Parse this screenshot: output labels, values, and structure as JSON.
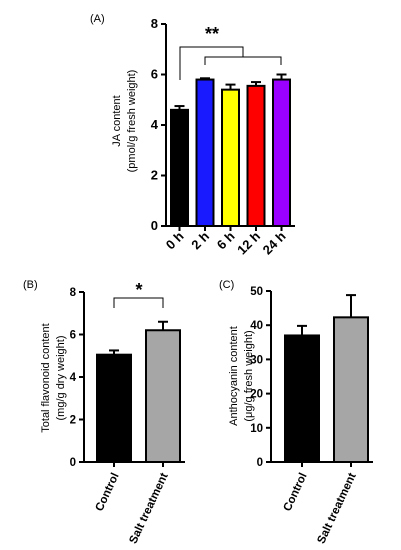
{
  "chart_data": [
    {
      "panel": "(A)",
      "type": "bar",
      "ylabel": [
        "JA content",
        "(pmol/g fresh weight)"
      ],
      "categories": [
        "0 h",
        "2 h",
        "6 h",
        "12 h",
        "24 h"
      ],
      "values": [
        4.6,
        5.8,
        5.4,
        5.55,
        5.8
      ],
      "errors": [
        0.15,
        0.05,
        0.2,
        0.15,
        0.2
      ],
      "colors": [
        "#000000",
        "#1a1aff",
        "#ffff00",
        "#ff0000",
        "#9900ff"
      ],
      "ylim": [
        0,
        8
      ],
      "yticks": [
        0,
        2,
        4,
        6,
        8
      ],
      "annotation": "**"
    },
    {
      "panel": "(B)",
      "type": "bar",
      "ylabel": [
        "Total flavonoid content",
        "(mg/g dry weight)"
      ],
      "categories": [
        "Control",
        "Salt treatment"
      ],
      "values": [
        5.05,
        6.2
      ],
      "errors": [
        0.2,
        0.4
      ],
      "colors": [
        "#000000",
        "#a6a6a6"
      ],
      "ylim": [
        0,
        8
      ],
      "yticks": [
        0,
        2,
        4,
        6,
        8
      ],
      "annotation": "*"
    },
    {
      "panel": "(C)",
      "type": "bar",
      "ylabel": [
        "Anthocyanin content",
        "(μg/g fresh weight)"
      ],
      "categories": [
        "Control",
        "Salt treatment"
      ],
      "values": [
        37,
        42.3
      ],
      "errors": [
        2.8,
        6.5
      ],
      "colors": [
        "#000000",
        "#a6a6a6"
      ],
      "ylim": [
        0,
        50
      ],
      "yticks": [
        0,
        10,
        20,
        30,
        40,
        50
      ],
      "annotation": ""
    }
  ]
}
